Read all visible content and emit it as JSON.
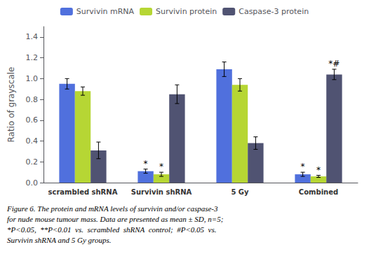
{
  "chart_data": {
    "type": "bar",
    "categories": [
      "scrambled shRNA",
      "Survivin shRNA",
      "5 Gy",
      "Combined"
    ],
    "series": [
      {
        "name": "Survivin mRNA",
        "values": [
          0.95,
          0.11,
          1.09,
          0.08
        ],
        "errors": [
          0.05,
          0.02,
          0.07,
          0.02
        ]
      },
      {
        "name": "Survivin protein",
        "values": [
          0.88,
          0.08,
          0.94,
          0.06
        ],
        "errors": [
          0.04,
          0.02,
          0.06,
          0.01
        ]
      },
      {
        "name": "Caspase-3 protein",
        "values": [
          0.31,
          0.85,
          0.38,
          1.04
        ],
        "errors": [
          0.08,
          0.09,
          0.06,
          0.05
        ]
      }
    ],
    "ylabel": "Ratio of grayscale",
    "ylim": [
      0,
      1.5
    ],
    "yticks": [
      {
        "value": 0.0,
        "label": "0.0"
      },
      0.2,
      0.4,
      0.6,
      0.8,
      {
        "value": 1.0,
        "label": "1.0"
      },
      1.2,
      1.4
    ],
    "grid": false,
    "legend": "upper center",
    "annotations": [
      {
        "category": "Survivin shRNA",
        "series": "Survivin mRNA",
        "text": "*"
      },
      {
        "category": "Survivin shRNA",
        "series": "Survivin protein",
        "text": "*"
      },
      {
        "category": "Combined",
        "series": "Survivin mRNA",
        "text": "*"
      },
      {
        "category": "Combined",
        "series": "Survivin protein",
        "text": "*"
      },
      {
        "category": "Combined",
        "series": "Caspase-3 protein",
        "text": "*#"
      }
    ],
    "caption": [
      "Figure 6. The protein and mRNA levels of survivin and/or caspase-3",
      "for nude mouse tumour mass. Data are presented as mean ± SD, n=5;",
      "*P<0.05,  **P<0.01  vs.  scrambled  shRNA  control;  #P<0.05  vs.",
      "Survivin shRNA and 5 Gy groups."
    ]
  }
}
